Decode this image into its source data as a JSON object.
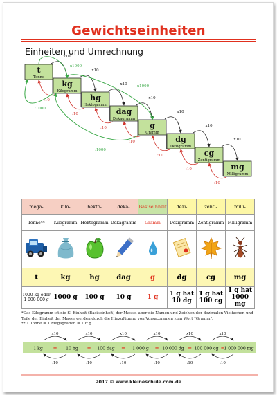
{
  "title": "Gewichtseinheiten",
  "subtitle": "Einheiten und Umrechnung",
  "stairs": {
    "steps": [
      {
        "symbol": "t",
        "name": "Tonne"
      },
      {
        "symbol": "kg",
        "name": "Kilogramm"
      },
      {
        "symbol": "hg",
        "name": "Hektogramm"
      },
      {
        "symbol": "dag",
        "name": "Dekagramm"
      },
      {
        "symbol": "g",
        "name": "Gramm"
      },
      {
        "symbol": "dg",
        "name": "Dezigramm"
      },
      {
        "symbol": "cg",
        "name": "Zentigramm"
      },
      {
        "symbol": "mg",
        "name": "Milligramm"
      }
    ],
    "x10": "x10",
    "div10": ":10",
    "x1000": "x1000",
    "div1000": ":1000"
  },
  "table": {
    "prefixes": [
      "mega-",
      "kilo-",
      "hekto-",
      "deka-",
      "Basiseinheit",
      "dezi-",
      "zenti-",
      "milli-"
    ],
    "names": [
      "Tonne**",
      "Kilogramm",
      "Hektogramm",
      "Dekagramm",
      "Gramm",
      "Dezigramm",
      "Zentigramm",
      "Milligramm"
    ],
    "symbols": [
      "t",
      "kg",
      "hg",
      "dag",
      "g",
      "dg",
      "cg",
      "mg"
    ],
    "equiv": [
      "1000 kg oder 1 000 000 g",
      "1000 g",
      "100 g",
      "10 g",
      "1 g",
      "1 g hat 10 dg",
      "1 g hat 100 cg",
      "1 g hat 1000 mg"
    ],
    "prefix_colors": [
      "#f6cfc3",
      "#f6cfc3",
      "#f6cfc3",
      "#f6cfc3",
      "#c7e4a6",
      "#fdf7a6",
      "#fdf7a6",
      "#fdf7a6"
    ],
    "icons": [
      "truck-icon",
      "sack-icon",
      "apple-icon",
      "pencil-icon",
      "water-drop-icon",
      "certificate-icon",
      "leaf-icon",
      "ant-icon"
    ]
  },
  "note_1": "*Das Kilogramm ist die SI-Einheit (Basiseinheit) der Masse, aber die Namen und Zeichen der dezimalen Vielfachen und Teile der Einheit der Masse werden durch die Hinzufügung von Vorsatznamen zum Wort \"Gramm\".",
  "note_2": "** 1 Tonne = 1 Megagramm = 10⁶ g",
  "conversion": {
    "values": [
      "1 kg",
      "10 hg",
      "100 dag",
      "1 000 g",
      "10 000 dg",
      "100 000 cg",
      "1 000 000 mg"
    ],
    "equals": "=",
    "x10": "x10",
    "div10": ":10"
  },
  "footer": "2017 © www.kleineschule.com.de",
  "colors": {
    "title": "#e0301e",
    "step_green": "#c3e19c",
    "arrow_green": "#38a845",
    "arrow_red": "#d0312a",
    "symbol_row": "#fdf7b4"
  }
}
